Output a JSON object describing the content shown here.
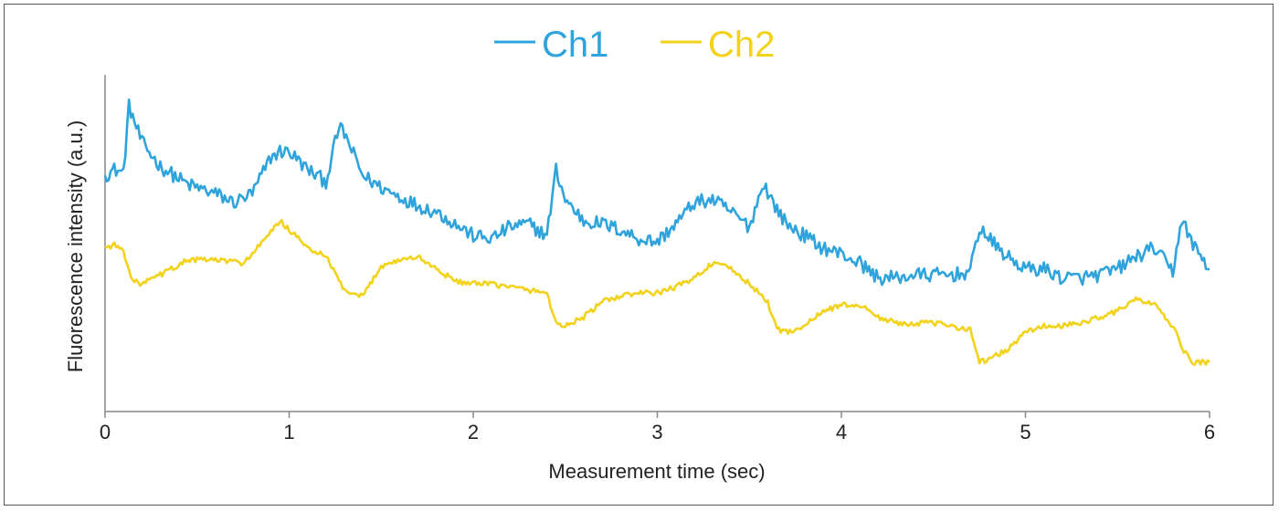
{
  "chart_data": {
    "type": "line",
    "title": "",
    "xlabel": "Measurement time (sec)",
    "ylabel": "Fluorescence intensity (a.u.)",
    "xlim": [
      0,
      6
    ],
    "ylim": [
      0,
      100
    ],
    "x_ticks": [
      "0",
      "1",
      "2",
      "3",
      "4",
      "5",
      "6"
    ],
    "grid": false,
    "legend_position": "top-center",
    "series": [
      {
        "name": "Ch1",
        "color": "#2fa4dc",
        "x": [
          0,
          0.05,
          0.1,
          0.13,
          0.2,
          0.3,
          0.45,
          0.6,
          0.7,
          0.8,
          0.9,
          0.95,
          1.0,
          1.1,
          1.2,
          1.27,
          1.3,
          1.4,
          1.5,
          1.6,
          1.7,
          1.8,
          1.9,
          2.0,
          2.1,
          2.2,
          2.3,
          2.4,
          2.45,
          2.5,
          2.6,
          2.7,
          2.8,
          2.9,
          3.0,
          3.1,
          3.2,
          3.3,
          3.4,
          3.5,
          3.58,
          3.6,
          3.7,
          3.8,
          3.9,
          4.0,
          4.1,
          4.2,
          4.3,
          4.4,
          4.5,
          4.6,
          4.7,
          4.75,
          4.8,
          4.9,
          5.0,
          5.1,
          5.2,
          5.3,
          5.4,
          5.5,
          5.6,
          5.7,
          5.8,
          5.85,
          5.9,
          6.0
        ],
        "values": [
          72,
          74,
          73,
          95,
          83,
          75,
          69,
          66,
          63,
          66,
          78,
          80,
          80,
          74,
          70,
          88,
          86,
          72,
          68,
          65,
          62,
          60,
          56,
          52,
          51,
          55,
          56,
          52,
          74,
          64,
          57,
          56,
          54,
          51,
          50,
          56,
          63,
          64,
          60,
          55,
          70,
          66,
          56,
          52,
          48,
          46,
          43,
          38,
          38,
          39,
          39,
          39,
          40,
          55,
          51,
          45,
          41,
          41,
          38,
          38,
          39,
          41,
          45,
          48,
          40,
          58,
          50,
          41
        ]
      },
      {
        "name": "Ch2",
        "color": "#f2d21b",
        "x": [
          0,
          0.05,
          0.1,
          0.15,
          0.2,
          0.3,
          0.45,
          0.6,
          0.75,
          0.8,
          0.9,
          0.95,
          1.0,
          1.1,
          1.2,
          1.3,
          1.35,
          1.4,
          1.5,
          1.6,
          1.7,
          1.8,
          1.9,
          2.0,
          2.1,
          2.2,
          2.3,
          2.4,
          2.45,
          2.5,
          2.6,
          2.7,
          2.8,
          2.9,
          3.0,
          3.1,
          3.2,
          3.3,
          3.4,
          3.5,
          3.6,
          3.65,
          3.7,
          3.8,
          3.9,
          4.0,
          4.1,
          4.2,
          4.3,
          4.4,
          4.5,
          4.6,
          4.7,
          4.75,
          4.8,
          4.9,
          5.0,
          5.1,
          5.2,
          5.3,
          5.4,
          5.5,
          5.6,
          5.7,
          5.8,
          5.85,
          5.9,
          6.0
        ],
        "values": [
          48,
          49,
          47,
          37,
          36,
          39,
          44,
          44,
          43,
          46,
          53,
          57,
          54,
          48,
          45,
          34,
          32,
          32,
          42,
          44,
          45,
          41,
          37,
          36,
          36,
          35,
          34,
          33,
          23,
          22,
          25,
          30,
          32,
          33,
          33,
          35,
          38,
          43,
          41,
          36,
          30,
          21,
          20,
          22,
          27,
          29,
          29,
          25,
          23,
          23,
          23,
          22,
          21,
          10,
          11,
          14,
          20,
          22,
          22,
          23,
          25,
          27,
          31,
          29,
          22,
          15,
          10,
          10
        ]
      }
    ]
  }
}
